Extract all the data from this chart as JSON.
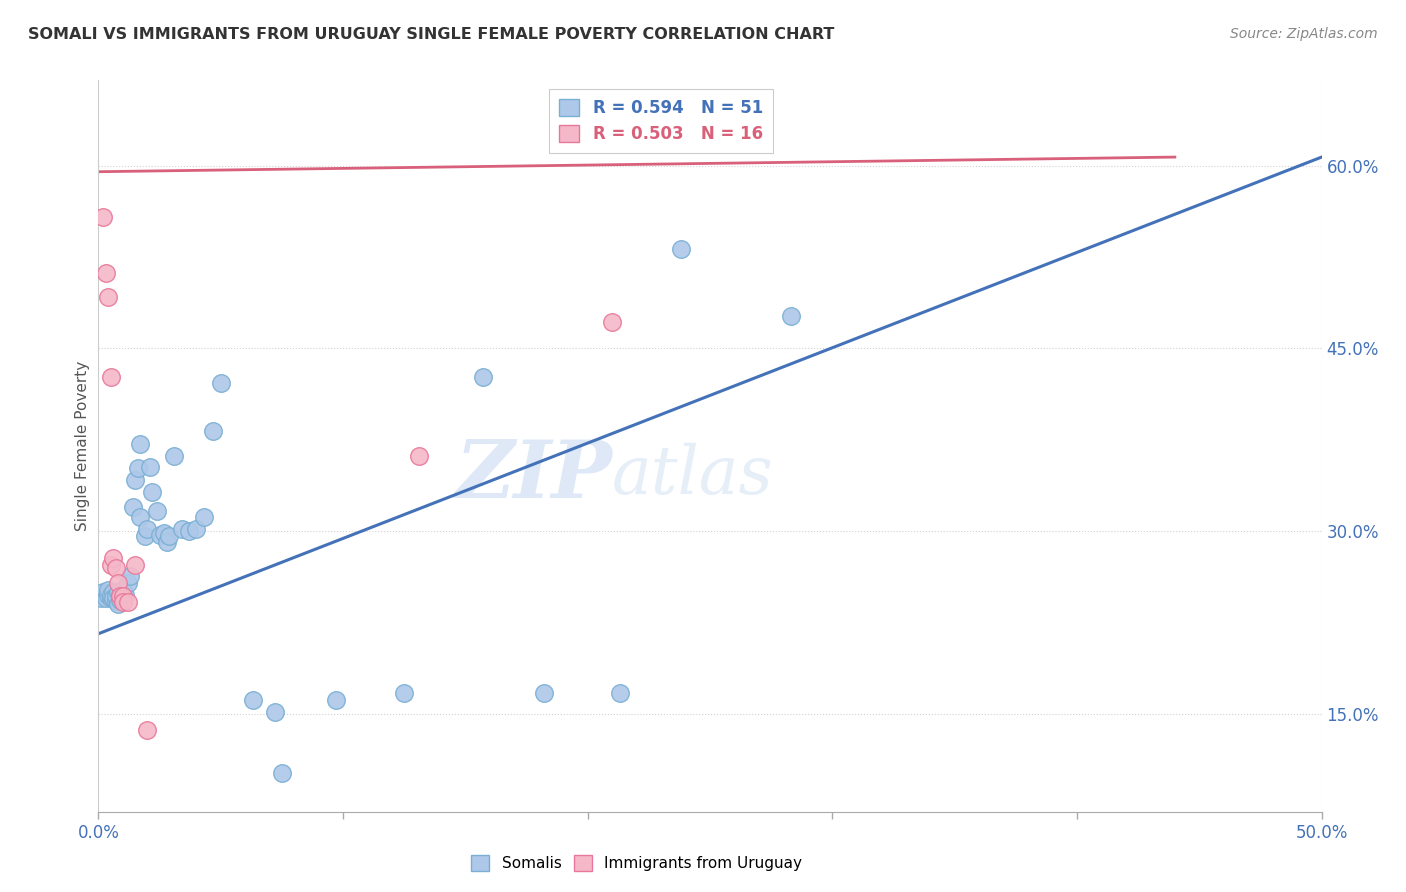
{
  "title": "SOMALI VS IMMIGRANTS FROM URUGUAY SINGLE FEMALE POVERTY CORRELATION CHART",
  "source": "Source: ZipAtlas.com",
  "ylabel": "Single Female Poverty",
  "yticks": [
    0.15,
    0.3,
    0.45,
    0.6
  ],
  "ytick_labels": [
    "15.0%",
    "30.0%",
    "45.0%",
    "60.0%"
  ],
  "xlim": [
    0.0,
    0.5
  ],
  "ylim": [
    0.07,
    0.67
  ],
  "legend_r1": "R = 0.594",
  "legend_n1": "N = 51",
  "legend_r2": "R = 0.503",
  "legend_n2": "N = 16",
  "somali_color": "#adc8e8",
  "somali_edge_color": "#7aafd4",
  "uruguay_color": "#f5b8c8",
  "uruguay_edge_color": "#e8789a",
  "blue_line_color": "#4472b8",
  "pink_line_color": "#d9607a",
  "watermark_zip": "ZIP",
  "watermark_atlas": "atlas",
  "somali_points": [
    [
      0.001,
      0.245
    ],
    [
      0.002,
      0.25
    ],
    [
      0.003,
      0.245
    ],
    [
      0.004,
      0.248
    ],
    [
      0.004,
      0.252
    ],
    [
      0.005,
      0.245
    ],
    [
      0.005,
      0.248
    ],
    [
      0.006,
      0.25
    ],
    [
      0.006,
      0.245
    ],
    [
      0.007,
      0.243
    ],
    [
      0.007,
      0.247
    ],
    [
      0.008,
      0.25
    ],
    [
      0.008,
      0.24
    ],
    [
      0.009,
      0.244
    ],
    [
      0.009,
      0.248
    ],
    [
      0.01,
      0.252
    ],
    [
      0.01,
      0.244
    ],
    [
      0.011,
      0.248
    ],
    [
      0.012,
      0.258
    ],
    [
      0.013,
      0.263
    ],
    [
      0.014,
      0.32
    ],
    [
      0.015,
      0.342
    ],
    [
      0.016,
      0.352
    ],
    [
      0.017,
      0.372
    ],
    [
      0.017,
      0.312
    ],
    [
      0.019,
      0.296
    ],
    [
      0.02,
      0.302
    ],
    [
      0.021,
      0.353
    ],
    [
      0.022,
      0.332
    ],
    [
      0.024,
      0.317
    ],
    [
      0.025,
      0.297
    ],
    [
      0.027,
      0.299
    ],
    [
      0.028,
      0.291
    ],
    [
      0.029,
      0.296
    ],
    [
      0.031,
      0.362
    ],
    [
      0.034,
      0.302
    ],
    [
      0.037,
      0.3
    ],
    [
      0.04,
      0.302
    ],
    [
      0.043,
      0.312
    ],
    [
      0.047,
      0.382
    ],
    [
      0.05,
      0.422
    ],
    [
      0.063,
      0.162
    ],
    [
      0.072,
      0.152
    ],
    [
      0.075,
      0.102
    ],
    [
      0.097,
      0.162
    ],
    [
      0.125,
      0.167
    ],
    [
      0.157,
      0.427
    ],
    [
      0.182,
      0.167
    ],
    [
      0.213,
      0.167
    ],
    [
      0.238,
      0.532
    ],
    [
      0.283,
      0.477
    ]
  ],
  "uruguay_points": [
    [
      0.002,
      0.558
    ],
    [
      0.003,
      0.512
    ],
    [
      0.004,
      0.492
    ],
    [
      0.005,
      0.427
    ],
    [
      0.005,
      0.272
    ],
    [
      0.006,
      0.278
    ],
    [
      0.007,
      0.27
    ],
    [
      0.008,
      0.258
    ],
    [
      0.009,
      0.247
    ],
    [
      0.01,
      0.247
    ],
    [
      0.01,
      0.242
    ],
    [
      0.012,
      0.242
    ],
    [
      0.015,
      0.272
    ],
    [
      0.02,
      0.137
    ],
    [
      0.131,
      0.362
    ],
    [
      0.21,
      0.472
    ]
  ],
  "blue_line_x": [
    0.0,
    0.5
  ],
  "blue_line_y": [
    0.216,
    0.607
  ],
  "pink_line_x": [
    0.0,
    0.44
  ],
  "pink_line_y": [
    0.595,
    0.607
  ]
}
